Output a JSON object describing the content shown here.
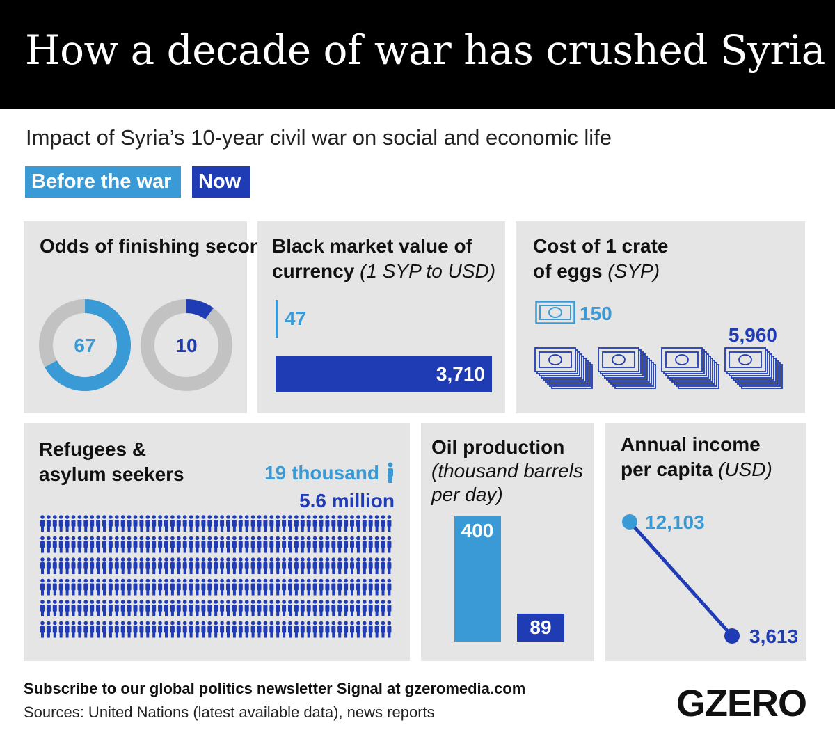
{
  "title": "How a decade of war has crushed Syria",
  "subtitle": "Impact of Syria’s 10-year civil war on social and economic life",
  "legend": {
    "before": "Before the war",
    "now": "Now"
  },
  "colors": {
    "before": "#3a9ad6",
    "now": "#1f3cb5",
    "panel": "#e5e5e5",
    "grey": "#c2c2c2"
  },
  "chart_data": [
    {
      "type": "pie",
      "title_main": "Odds of finishing secondary school",
      "title_unit": "(%)",
      "series": [
        {
          "name": "Before the war",
          "value": 67
        },
        {
          "name": "Now",
          "value": 10
        }
      ],
      "labels": [
        "67",
        "10"
      ]
    },
    {
      "type": "bar",
      "title_main_line1": "Black market value of",
      "title_main_line2": "currency",
      "title_unit": "(1 SYP to USD)",
      "series": [
        {
          "name": "Before the war",
          "value": 47
        },
        {
          "name": "Now",
          "value": 3710
        }
      ],
      "labels": [
        "47",
        "3,710"
      ]
    },
    {
      "type": "bar",
      "title_main_line1": "Cost of 1 crate",
      "title_main_line2": "of eggs",
      "title_unit": "(SYP)",
      "series": [
        {
          "name": "Before the war",
          "value": 150
        },
        {
          "name": "Now",
          "value": 5960
        }
      ],
      "labels": [
        "150",
        "5,960"
      ],
      "icon": "banknote-icon"
    },
    {
      "type": "bar",
      "title_line1": "Refugees &",
      "title_line2": "asylum seekers",
      "series": [
        {
          "name": "Before the war",
          "value": 19000
        },
        {
          "name": "Now",
          "value": 5600000
        }
      ],
      "labels": [
        "19 thousand",
        "5.6 million"
      ],
      "icon": "person-icon"
    },
    {
      "type": "bar",
      "title_main": "Oil production",
      "title_unit_line1": "(thousand barrels",
      "title_unit_line2": "per day)",
      "series": [
        {
          "name": "Before the war",
          "value": 400
        },
        {
          "name": "Now",
          "value": 89
        }
      ],
      "labels": [
        "400",
        "89"
      ]
    },
    {
      "type": "line",
      "title_main_line1": "Annual income",
      "title_main_line2": "per capita",
      "title_unit": "(USD)",
      "series": [
        {
          "name": "Before the war",
          "value": 12103
        },
        {
          "name": "Now",
          "value": 3613
        }
      ],
      "labels": [
        "12,103",
        "3,613"
      ]
    }
  ],
  "footer": {
    "subscribe": "Subscribe to our global politics newsletter Signal at gzeromedia.com",
    "sources": "Sources: United Nations (latest available data), news reports",
    "logo": "GZERO"
  }
}
